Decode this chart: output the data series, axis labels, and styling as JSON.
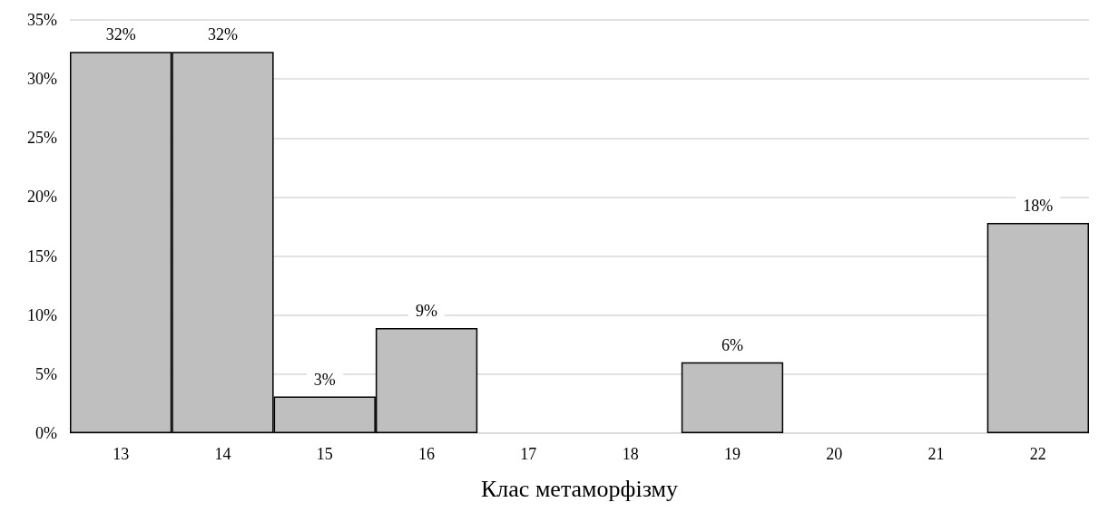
{
  "chart_data": {
    "type": "bar",
    "xlabel": "Клас метаморфізму",
    "categories": [
      "13",
      "14",
      "15",
      "16",
      "17",
      "18",
      "19",
      "20",
      "21",
      "22"
    ],
    "values": [
      32.3,
      32.3,
      3.1,
      8.9,
      0,
      0,
      6.0,
      0,
      0,
      17.8
    ],
    "value_labels": [
      "32%",
      "32%",
      "3%",
      "9%",
      null,
      null,
      "6%",
      null,
      null,
      "18%"
    ],
    "color": "#bfbfbf",
    "ylim": [
      0,
      35
    ],
    "yticks": [
      {
        "value": 0,
        "label": "0%"
      },
      {
        "value": 5,
        "label": "5%"
      },
      {
        "value": 10,
        "label": "10%"
      },
      {
        "value": 15,
        "label": "15%"
      },
      {
        "value": 20,
        "label": "20%"
      },
      {
        "value": 25,
        "label": "25%"
      },
      {
        "value": 30,
        "label": "30%"
      },
      {
        "value": 35,
        "label": "35%"
      }
    ],
    "grid": "y"
  }
}
